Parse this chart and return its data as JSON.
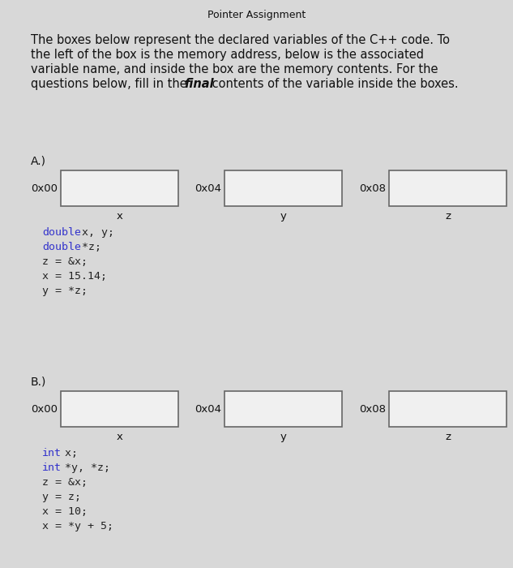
{
  "title": "Pointer Assignment",
  "bg_color": "#d8d8d8",
  "desc_lines": [
    "The boxes below represent the declared variables of the C++ code. To",
    "the left of the box is the memory address, below is the associated",
    "variable name, and inside the box are the memory contents. For the",
    "questions below, fill in the ​final​ contents of the variable inside the boxes."
  ],
  "last_line_pre": "questions below, fill in the ",
  "last_line_bold": "final",
  "last_line_post": " contents of the variable inside the boxes.",
  "section_a_label": "A.)",
  "section_b_label": "B.)",
  "addresses": [
    "0x00",
    "0x04",
    "0x08"
  ],
  "var_names": [
    "x",
    "y",
    "z"
  ],
  "code_a_lines": [
    [
      "double",
      " x, y;"
    ],
    [
      "double",
      " *z;"
    ],
    [
      "",
      "z = &x;"
    ],
    [
      "",
      "x = 15.14;"
    ],
    [
      "",
      "y = *z;"
    ]
  ],
  "code_b_lines": [
    [
      "int",
      " x;"
    ],
    [
      "int",
      " *y, *z;"
    ],
    [
      "",
      "z = &x;"
    ],
    [
      "",
      "y = z;"
    ],
    [
      "",
      "x = 10;"
    ],
    [
      "",
      "x = *y + 5;"
    ]
  ],
  "keyword_color": "#3333cc",
  "normal_color": "#222222",
  "box_facecolor": "#f0f0f0",
  "box_edgecolor": "#666666"
}
